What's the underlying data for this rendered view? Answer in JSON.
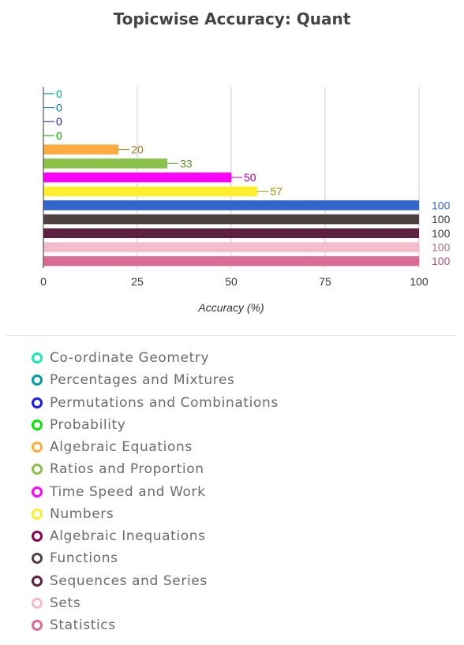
{
  "chart_data": {
    "type": "bar",
    "orientation": "horizontal",
    "title": "Topicwise Accuracy: Quant",
    "xlabel": "Accuracy (%)",
    "ylabel": "",
    "xlim": [
      0,
      100
    ],
    "x_ticks": [
      0,
      25,
      50,
      75,
      100
    ],
    "grid": true,
    "legend_position": "bottom",
    "categories": [
      "Co-ordinate Geometry",
      "Percentages and Mixtures",
      "Permutations and Combinations",
      "Probability",
      "Algebraic Equations",
      "Ratios and Proportion",
      "Time Speed and Work",
      "Numbers",
      "Algebraic Inequations",
      "Functions",
      "Sequences and Series",
      "Sets",
      "Statistics"
    ],
    "values": [
      0,
      0,
      0,
      0,
      20,
      33,
      50,
      57,
      100,
      100,
      100,
      100,
      100
    ],
    "colors": [
      "#1de9b6",
      "#0097a7",
      "#1a1aff",
      "#00e600",
      "#ffab40",
      "#8bc34a",
      "#ff00ff",
      "#ffee2b",
      "#3366cc",
      "#4e4040",
      "#5c2040",
      "#f4bccb",
      "#d96b95"
    ],
    "legend_colors": [
      "#1de9b6",
      "#0097a7",
      "#1a1aff",
      "#00e600",
      "#ffab40",
      "#8bc34a",
      "#ff00ff",
      "#ffee2b",
      "#8b0050",
      "#4e4040",
      "#5c2040",
      "#f4bccb",
      "#d96b95"
    ],
    "label_colors": [
      "#00a680",
      "#007785",
      "#1a1a99",
      "#00a600",
      "#a07a20",
      "#5e9030",
      "#a000a0",
      "#9a9010",
      "#3366cc",
      "#333333",
      "#333333",
      "#b07080",
      "#b05070"
    ]
  }
}
